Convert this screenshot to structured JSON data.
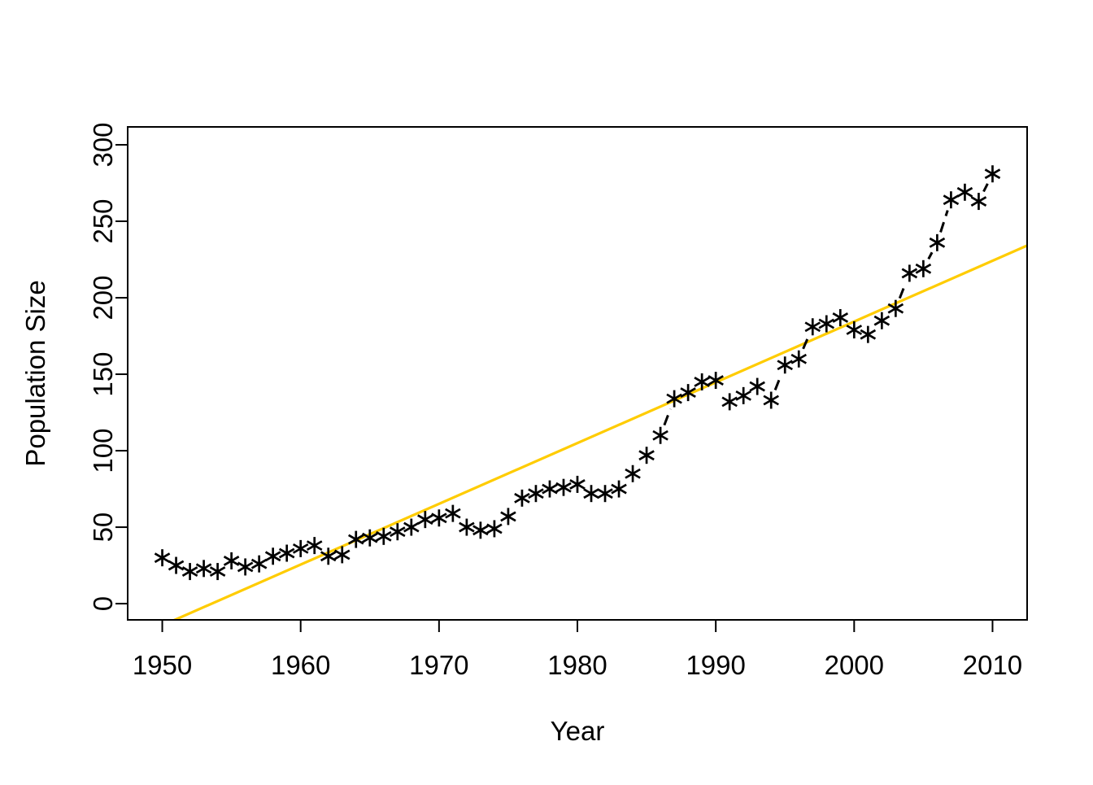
{
  "chart_data": {
    "type": "scatter",
    "title": "",
    "xlabel": "Year",
    "ylabel": "Population Size",
    "x_ticks": [
      1950,
      1960,
      1970,
      1980,
      1990,
      2000,
      2010
    ],
    "y_ticks": [
      0,
      50,
      100,
      150,
      200,
      250,
      300
    ],
    "xlim": [
      1947.5,
      2012.5
    ],
    "ylim": [
      -10.6,
      311.7
    ],
    "grid": false,
    "legend": "none",
    "marker": "asterisk",
    "marker_color": "#000000",
    "connector_line_style": "dashed",
    "connector_color": "#000000",
    "series": [
      {
        "name": "population",
        "x": [
          1950,
          1951,
          1952,
          1953,
          1954,
          1955,
          1956,
          1957,
          1958,
          1959,
          1960,
          1961,
          1962,
          1963,
          1964,
          1965,
          1966,
          1967,
          1968,
          1969,
          1970,
          1971,
          1972,
          1973,
          1974,
          1975,
          1976,
          1977,
          1978,
          1979,
          1980,
          1981,
          1982,
          1983,
          1984,
          1985,
          1986,
          1987,
          1988,
          1989,
          1990,
          1991,
          1992,
          1993,
          1994,
          1995,
          1996,
          1997,
          1998,
          1999,
          2000,
          2001,
          2002,
          2003,
          2004,
          2005,
          2006,
          2007,
          2008,
          2009,
          2010
        ],
        "y": [
          30,
          25,
          21,
          23,
          21,
          28,
          24,
          26,
          31,
          33,
          36,
          38,
          31,
          32,
          42,
          43,
          44,
          47,
          50,
          55,
          56,
          59,
          50,
          48,
          49,
          57,
          69,
          72,
          75,
          76,
          78,
          72,
          72,
          75,
          85,
          97,
          110,
          134,
          138,
          145,
          146,
          132,
          136,
          142,
          133,
          156,
          160,
          181,
          183,
          187,
          179,
          176,
          185,
          193,
          216,
          219,
          236,
          264,
          269,
          263,
          281
        ]
      }
    ],
    "trend_line": {
      "color": "#FFCC00",
      "slope_per_year": 3.973,
      "value_at_1950": -14.2
    }
  },
  "layout_colors": {
    "background": "#FFFFFF",
    "axis_color": "#000000"
  }
}
